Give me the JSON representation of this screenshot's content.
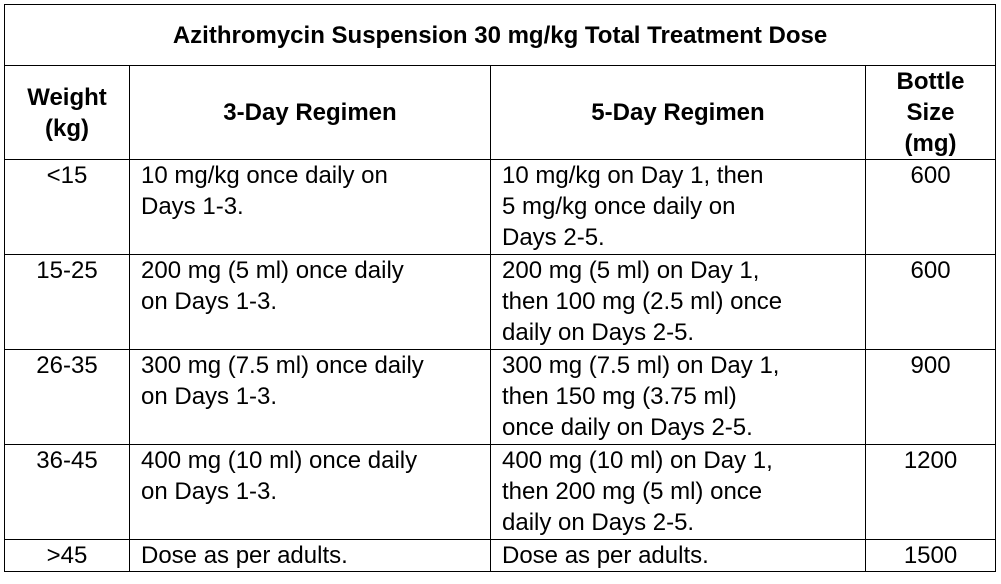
{
  "table": {
    "title": "Azithromycin Suspension 30 mg/kg Total Treatment Dose",
    "headers": {
      "weight": [
        "Weight",
        "(kg)"
      ],
      "three_day": "3-Day Regimen",
      "five_day": "5-Day Regimen",
      "bottle": [
        "Bottle",
        "Size",
        "(mg)"
      ]
    },
    "rows": [
      {
        "weight": "<15",
        "three_day": [
          "10 mg/kg once daily on",
          "Days 1-3."
        ],
        "five_day": [
          "10 mg/kg on Day 1, then",
          "5 mg/kg once daily on",
          "Days 2-5."
        ],
        "bottle": "600"
      },
      {
        "weight": "15-25",
        "three_day": [
          "200 mg (5 ml) once daily",
          "on Days 1-3."
        ],
        "five_day": [
          "200 mg (5 ml) on Day 1,",
          "then 100 mg (2.5 ml) once",
          "daily on Days 2-5."
        ],
        "bottle": "600"
      },
      {
        "weight": "26-35",
        "three_day": [
          "300 mg (7.5 ml) once daily",
          "on Days 1-3."
        ],
        "five_day": [
          "300 mg (7.5 ml) on Day 1,",
          "then 150 mg (3.75 ml)",
          "once daily on Days 2-5."
        ],
        "bottle": "900"
      },
      {
        "weight": "36-45",
        "three_day": [
          "400 mg (10 ml) once daily",
          "on Days 1-3."
        ],
        "five_day": [
          "400 mg (10 ml) on Day 1,",
          "then 200 mg (5 ml) once",
          "daily on Days 2-5."
        ],
        "bottle": "1200"
      },
      {
        "weight": ">45",
        "three_day": [
          "Dose as per adults."
        ],
        "five_day": [
          "Dose as per adults."
        ],
        "bottle": "1500"
      }
    ]
  }
}
